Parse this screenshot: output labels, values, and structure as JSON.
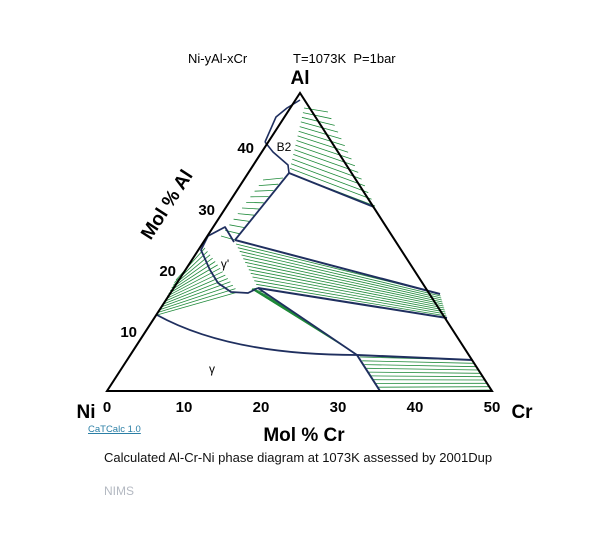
{
  "header": {
    "system": "Ni-yAl-xCr",
    "conditions": "T=1073K  P=1bar"
  },
  "corners": {
    "top": "Al",
    "left": "Ni",
    "right": "Cr"
  },
  "axes": {
    "bottom_label": "Mol % Cr",
    "left_label": "Mol % Al",
    "bottom_ticks": [
      "0",
      "10",
      "20",
      "30",
      "40",
      "50"
    ],
    "left_ticks": [
      "10",
      "20",
      "30",
      "40"
    ]
  },
  "phases": {
    "b2": "B2",
    "gamma_prime": "γ'",
    "gamma": "γ"
  },
  "link": {
    "label": "CaTCalc 1.0"
  },
  "caption": "Calculated Al-Cr-Ni phase diagram at 1073K assessed by 2001Dup",
  "organization": "NIMS",
  "colors": {
    "outline": "#000000",
    "boundary": "#1f2f5f",
    "tieline": "#1f8a3a",
    "link": "#2b7fa6"
  }
}
